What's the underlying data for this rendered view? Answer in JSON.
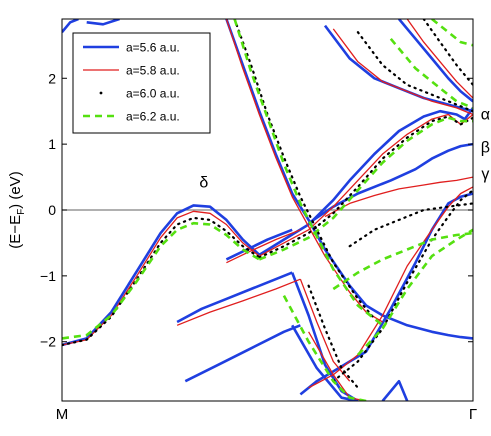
{
  "chart_data": {
    "type": "line",
    "title": "",
    "xlabel": "",
    "ylabel_parts": {
      "main": "(E−E",
      "sub": "F",
      "tail": ") (eV)"
    },
    "xlim": [
      0,
      1
    ],
    "ylim": [
      -2.9,
      2.9
    ],
    "y_ticks": [
      -2,
      -1,
      0,
      1,
      2
    ],
    "y_tick_labels": [
      "−2",
      "−1",
      "0",
      "1",
      "2"
    ],
    "x_tick_labels": [
      {
        "x": 0,
        "label": "M"
      },
      {
        "x": 1,
        "label": "Γ"
      }
    ],
    "fermi_level": 0,
    "grid": false,
    "legend_position": "top-left",
    "annotations": [
      {
        "text": "δ",
        "x": 0.345,
        "y": 0.42
      },
      {
        "text": "α",
        "x": 1.03,
        "y": 1.45
      },
      {
        "text": "β",
        "x": 1.03,
        "y": 0.95
      },
      {
        "text": "γ",
        "x": 1.03,
        "y": 0.55
      }
    ],
    "series": [
      {
        "name": "a=5.6 a.u.",
        "color": "#1f3fe0",
        "dash": "solid",
        "width": 2.6,
        "bands": [
          {
            "x": [
              0,
              0.06,
              0.12,
              0.18,
              0.24,
              0.28,
              0.32,
              0.36,
              0.4,
              0.44,
              0.48
            ],
            "y": [
              -2.05,
              -1.95,
              -1.55,
              -0.95,
              -0.35,
              -0.05,
              0.07,
              0.05,
              -0.15,
              -0.45,
              -0.68
            ]
          },
          {
            "x": [
              0.48,
              0.54,
              0.6,
              0.66,
              0.7,
              0.76,
              0.82,
              0.88,
              0.92,
              0.96,
              0.98,
              1.0
            ],
            "y": [
              -0.68,
              -0.45,
              -0.22,
              0.15,
              0.45,
              0.85,
              1.2,
              1.42,
              1.5,
              1.45,
              1.38,
              1.55
            ]
          },
          {
            "x": [
              0.6,
              0.66,
              0.72,
              0.8,
              0.86,
              0.9,
              0.94,
              0.97,
              1.0
            ],
            "y": [
              -0.2,
              0.05,
              0.25,
              0.45,
              0.62,
              0.78,
              0.9,
              0.97,
              1.0
            ]
          },
          {
            "x": [
              0.4,
              0.44,
              0.48,
              0.52,
              0.56,
              0.6,
              0.64,
              0.7,
              0.74,
              0.78
            ],
            "y": [
              2.9,
              2.2,
              1.5,
              0.85,
              0.25,
              -0.15,
              -0.6,
              -1.15,
              -1.45,
              -1.6
            ]
          },
          {
            "x": [
              0.78,
              0.84,
              0.9,
              0.94,
              0.97,
              1.0
            ],
            "y": [
              -1.6,
              -1.75,
              -1.85,
              -1.9,
              -1.93,
              -1.95
            ]
          },
          {
            "x": [
              0.64,
              0.7,
              0.76,
              0.82,
              0.88,
              0.94,
              1.0
            ],
            "y": [
              2.8,
              2.3,
              2.0,
              1.85,
              1.7,
              1.6,
              1.5
            ]
          },
          {
            "x": [
              0.82,
              0.86,
              0.9,
              0.94,
              0.97,
              1.0
            ],
            "y": [
              2.9,
              2.6,
              2.3,
              2.0,
              1.8,
              1.65
            ]
          },
          {
            "x": [
              0.4,
              0.45,
              0.5,
              0.56
            ],
            "y": [
              -0.75,
              -0.6,
              -0.45,
              -0.3
            ]
          },
          {
            "x": [
              0.28,
              0.34,
              0.4,
              0.46,
              0.52,
              0.56
            ],
            "y": [
              -1.7,
              -1.5,
              -1.35,
              -1.2,
              -1.05,
              -0.95
            ]
          },
          {
            "x": [
              0.3,
              0.38,
              0.46,
              0.54,
              0.58
            ],
            "y": [
              -2.6,
              -2.35,
              -2.1,
              -1.85,
              -1.75
            ]
          },
          {
            "x": [
              0.56,
              0.6,
              0.64,
              0.68,
              0.72
            ],
            "y": [
              -0.95,
              -1.6,
              -2.35,
              -2.75,
              -2.9
            ]
          },
          {
            "x": [
              0.58,
              0.62,
              0.66,
              0.7,
              0.74,
              0.8,
              0.86,
              0.9,
              0.94,
              0.97,
              1.0
            ],
            "y": [
              -2.8,
              -2.6,
              -2.45,
              -2.3,
              -2.15,
              -1.5,
              -0.8,
              -0.3,
              0.1,
              0.2,
              0.25
            ]
          },
          {
            "x": [
              0.56,
              0.62,
              0.68,
              0.72
            ],
            "y": [
              -1.75,
              -2.4,
              -2.85,
              -2.9
            ]
          },
          {
            "x": [
              0.78,
              0.82,
              0.84
            ],
            "y": [
              -2.9,
              -2.6,
              -2.9
            ]
          },
          {
            "x": [
              0.0,
              0.02,
              0.04
            ],
            "y": [
              2.7,
              2.85,
              2.9
            ]
          },
          {
            "x": [
              0.06,
              0.1,
              0.14
            ],
            "y": [
              2.85,
              2.82,
              2.9
            ]
          }
        ]
      },
      {
        "name": "a=5.8 a.u.",
        "color": "#e01e1e",
        "dash": "solid",
        "width": 1.3,
        "bands": [
          {
            "x": [
              0,
              0.06,
              0.12,
              0.18,
              0.24,
              0.28,
              0.32,
              0.36,
              0.4,
              0.44,
              0.48
            ],
            "y": [
              -2.05,
              -1.97,
              -1.6,
              -1.02,
              -0.42,
              -0.12,
              -0.02,
              -0.05,
              -0.22,
              -0.5,
              -0.7
            ]
          },
          {
            "x": [
              0.48,
              0.54,
              0.6,
              0.66,
              0.72,
              0.78,
              0.84,
              0.9,
              0.94,
              0.97,
              1.0
            ],
            "y": [
              -0.7,
              -0.5,
              -0.3,
              0.05,
              0.45,
              0.85,
              1.15,
              1.38,
              1.45,
              1.3,
              1.45
            ]
          },
          {
            "x": [
              0.64,
              0.7,
              0.76,
              0.82,
              0.88,
              0.92,
              0.96,
              1.0
            ],
            "y": [
              -0.1,
              0.1,
              0.22,
              0.32,
              0.38,
              0.42,
              0.45,
              0.5
            ]
          },
          {
            "x": [
              0.4,
              0.44,
              0.48,
              0.52,
              0.56,
              0.6,
              0.64,
              0.7,
              0.74,
              0.78
            ],
            "y": [
              2.9,
              2.15,
              1.45,
              0.8,
              0.2,
              -0.25,
              -0.7,
              -1.25,
              -1.55,
              -1.7
            ]
          },
          {
            "x": [
              0.66,
              0.72,
              0.78,
              0.84,
              0.9,
              0.96,
              1.0
            ],
            "y": [
              2.75,
              2.25,
              1.95,
              1.8,
              1.65,
              1.55,
              1.45
            ]
          },
          {
            "x": [
              0.84,
              0.88,
              0.92,
              0.96,
              1.0
            ],
            "y": [
              2.9,
              2.55,
              2.25,
              1.95,
              1.7
            ]
          },
          {
            "x": [
              0.4,
              0.46,
              0.52,
              0.58
            ],
            "y": [
              -0.8,
              -0.62,
              -0.45,
              -0.3
            ]
          },
          {
            "x": [
              0.28,
              0.36,
              0.44,
              0.52,
              0.58
            ],
            "y": [
              -1.75,
              -1.55,
              -1.38,
              -1.2,
              -1.05
            ]
          },
          {
            "x": [
              0.58,
              0.62,
              0.66,
              0.7
            ],
            "y": [
              -1.05,
              -1.7,
              -2.3,
              -2.6
            ]
          },
          {
            "x": [
              0.6,
              0.66,
              0.72,
              0.78,
              0.84,
              0.9,
              0.94,
              0.97,
              1.0
            ],
            "y": [
              -2.7,
              -2.5,
              -2.2,
              -1.6,
              -0.85,
              -0.3,
              0.05,
              0.25,
              0.35
            ]
          },
          {
            "x": [
              0.6,
              0.66,
              0.7,
              0.74
            ],
            "y": [
              -1.85,
              -2.5,
              -2.85,
              -2.9
            ]
          }
        ]
      },
      {
        "name": "a=6.0 a.u.",
        "color": "#000000",
        "dash": "dot",
        "width": 2.2,
        "bands": [
          {
            "x": [
              0,
              0.06,
              0.12,
              0.18,
              0.24,
              0.28,
              0.32,
              0.36,
              0.4,
              0.44,
              0.48
            ],
            "y": [
              -2.05,
              -1.97,
              -1.62,
              -1.07,
              -0.5,
              -0.22,
              -0.12,
              -0.15,
              -0.32,
              -0.55,
              -0.72
            ]
          },
          {
            "x": [
              0.48,
              0.54,
              0.6,
              0.66,
              0.72,
              0.78,
              0.84,
              0.9,
              0.94,
              0.97,
              1.0
            ],
            "y": [
              -0.72,
              -0.55,
              -0.35,
              -0.05,
              0.35,
              0.78,
              1.1,
              1.35,
              1.42,
              1.3,
              1.4
            ]
          },
          {
            "x": [
              0.7,
              0.76,
              0.82,
              0.88,
              0.94,
              1.0
            ],
            "y": [
              -0.55,
              -0.3,
              -0.15,
              0.0,
              0.05,
              0.1
            ]
          },
          {
            "x": [
              0.42,
              0.46,
              0.5,
              0.54,
              0.58,
              0.62,
              0.66,
              0.72,
              0.76
            ],
            "y": [
              2.9,
              2.2,
              1.45,
              0.8,
              0.2,
              -0.3,
              -0.8,
              -1.35,
              -1.65
            ]
          },
          {
            "x": [
              0.72,
              0.78,
              0.84,
              0.9,
              0.96,
              1.0
            ],
            "y": [
              2.7,
              2.2,
              1.9,
              1.75,
              1.6,
              1.5
            ]
          },
          {
            "x": [
              0.88,
              0.92,
              0.96,
              1.0
            ],
            "y": [
              2.9,
              2.55,
              2.2,
              1.9
            ]
          },
          {
            "x": [
              0.66,
              0.72,
              0.78,
              0.84,
              0.9,
              0.94,
              0.97,
              1.0
            ],
            "y": [
              -2.6,
              -2.3,
              -1.8,
              -1.1,
              -0.45,
              -0.1,
              0.15,
              0.3
            ]
          },
          {
            "x": [
              0.6,
              0.64,
              0.68,
              0.72
            ],
            "y": [
              -1.15,
              -1.8,
              -2.4,
              -2.7
            ]
          }
        ]
      },
      {
        "name": "a=6.2 a.u.",
        "color": "#55e010",
        "dash": "dash",
        "width": 2.6,
        "bands": [
          {
            "x": [
              0,
              0.06,
              0.12,
              0.18,
              0.24,
              0.28,
              0.32,
              0.36,
              0.4,
              0.44,
              0.48
            ],
            "y": [
              -1.95,
              -1.9,
              -1.6,
              -1.1,
              -0.55,
              -0.3,
              -0.2,
              -0.22,
              -0.38,
              -0.6,
              -0.75
            ]
          },
          {
            "x": [
              0.48,
              0.54,
              0.6,
              0.66,
              0.72,
              0.78,
              0.84,
              0.9,
              0.94,
              0.97,
              1.0
            ],
            "y": [
              -0.75,
              -0.6,
              -0.42,
              -0.12,
              0.3,
              0.72,
              1.05,
              1.3,
              1.4,
              1.35,
              1.35
            ]
          },
          {
            "x": [
              0.66,
              0.72,
              0.78,
              0.84,
              0.9,
              0.96,
              1.0
            ],
            "y": [
              -1.2,
              -0.95,
              -0.75,
              -0.6,
              -0.45,
              -0.38,
              -0.35
            ]
          },
          {
            "x": [
              0.42,
              0.46,
              0.5,
              0.54,
              0.58,
              0.62,
              0.66,
              0.72,
              0.78
            ],
            "y": [
              2.9,
              2.1,
              1.4,
              0.7,
              0.1,
              -0.4,
              -0.9,
              -1.45,
              -1.75
            ]
          },
          {
            "x": [
              0.8,
              0.86,
              0.92,
              0.96,
              1.0
            ],
            "y": [
              2.6,
              2.15,
              1.85,
              1.65,
              1.55
            ]
          },
          {
            "x": [
              0.72,
              0.78,
              0.84,
              0.9,
              0.96,
              1.0
            ],
            "y": [
              -2.2,
              -1.8,
              -1.2,
              -0.7,
              -0.45,
              -0.3
            ]
          },
          {
            "x": [
              0.54,
              0.6,
              0.66,
              0.7,
              0.74
            ],
            "y": [
              -1.3,
              -2.0,
              -2.6,
              -2.85,
              -2.9
            ]
          },
          {
            "x": [
              0.9,
              0.94,
              0.97,
              1.0
            ],
            "y": [
              2.9,
              2.7,
              2.55,
              2.5
            ]
          }
        ]
      }
    ]
  }
}
